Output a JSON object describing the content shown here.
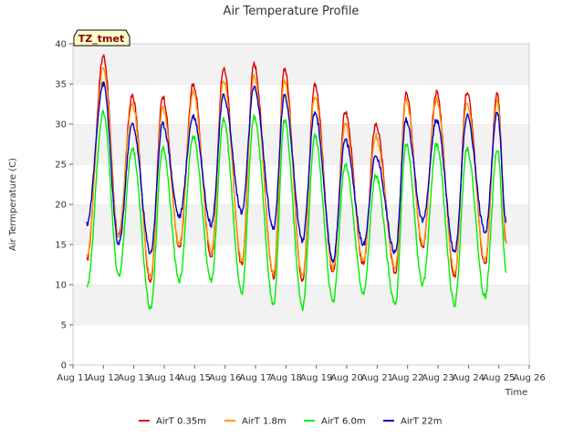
{
  "chart_data": {
    "type": "line",
    "title": "Air Temperature Profile",
    "xlabel": "Time",
    "ylabel": "Air Termperature (C)",
    "ylim": [
      0,
      40
    ],
    "xlim": [
      0,
      15
    ],
    "x_tick_labels": [
      "Aug 11",
      "Aug 12",
      "Aug 13",
      "Aug 14",
      "Aug 15",
      "Aug 16",
      "Aug 17",
      "Aug 18",
      "Aug 19",
      "Aug 20",
      "Aug 21",
      "Aug 22",
      "Aug 23",
      "Aug 24",
      "Aug 25",
      "Aug 26"
    ],
    "y_ticks": [
      0,
      5,
      10,
      15,
      20,
      25,
      30,
      35,
      40
    ],
    "grid": "horizontal bands",
    "legend_position": "bottom",
    "annotation": "TZ_tmet",
    "series": [
      {
        "name": "AirT 0.35m",
        "color": "#dd0000",
        "minima": [
          [
            0.45,
            13.0
          ],
          [
            1.5,
            16.0
          ],
          [
            2.55,
            10.5
          ],
          [
            3.5,
            14.5
          ],
          [
            4.55,
            13.5
          ],
          [
            5.55,
            12.5
          ],
          [
            6.6,
            11.0
          ],
          [
            7.55,
            10.5
          ],
          [
            8.55,
            11.5
          ],
          [
            9.55,
            12.5
          ],
          [
            10.6,
            11.5
          ],
          [
            11.5,
            14.5
          ],
          [
            12.55,
            11.0
          ],
          [
            13.55,
            12.5
          ],
          [
            14.25,
            15.0
          ]
        ],
        "maxima": [
          [
            1.0,
            38.5
          ],
          [
            1.95,
            33.5
          ],
          [
            2.95,
            33.5
          ],
          [
            3.95,
            35.0
          ],
          [
            4.95,
            37.0
          ],
          [
            5.95,
            37.5
          ],
          [
            6.95,
            37.0
          ],
          [
            7.95,
            35.0
          ],
          [
            8.95,
            31.5
          ],
          [
            9.95,
            30.0
          ],
          [
            10.95,
            34.0
          ],
          [
            11.95,
            34.0
          ],
          [
            12.95,
            34.0
          ],
          [
            13.95,
            34.0
          ]
        ]
      },
      {
        "name": "AirT 1.8m",
        "color": "#ff9900",
        "minima": [
          [
            0.45,
            13.5
          ],
          [
            1.5,
            16.0
          ],
          [
            2.55,
            11.0
          ],
          [
            3.5,
            15.0
          ],
          [
            4.55,
            14.0
          ],
          [
            5.55,
            13.0
          ],
          [
            6.6,
            11.5
          ],
          [
            7.55,
            11.0
          ],
          [
            8.55,
            12.0
          ],
          [
            9.55,
            13.0
          ],
          [
            10.6,
            12.0
          ],
          [
            11.5,
            15.0
          ],
          [
            12.55,
            11.5
          ],
          [
            13.55,
            13.0
          ],
          [
            14.25,
            15.5
          ]
        ],
        "maxima": [
          [
            1.0,
            37.0
          ],
          [
            1.95,
            32.5
          ],
          [
            2.95,
            32.0
          ],
          [
            3.95,
            34.0
          ],
          [
            4.95,
            35.5
          ],
          [
            5.95,
            36.0
          ],
          [
            6.95,
            35.5
          ],
          [
            7.95,
            33.5
          ],
          [
            8.95,
            30.0
          ],
          [
            9.95,
            28.5
          ],
          [
            10.95,
            33.0
          ],
          [
            11.95,
            33.0
          ],
          [
            12.95,
            32.5
          ],
          [
            13.95,
            33.0
          ]
        ]
      },
      {
        "name": "AirT 6.0m",
        "color": "#00ee00",
        "minima": [
          [
            0.45,
            9.5
          ],
          [
            1.5,
            11.0
          ],
          [
            2.55,
            7.0
          ],
          [
            3.5,
            10.5
          ],
          [
            4.55,
            10.5
          ],
          [
            5.55,
            9.0
          ],
          [
            6.6,
            7.5
          ],
          [
            7.55,
            7.0
          ],
          [
            8.55,
            8.0
          ],
          [
            9.55,
            9.0
          ],
          [
            10.6,
            7.5
          ],
          [
            11.5,
            10.0
          ],
          [
            12.55,
            7.5
          ],
          [
            13.55,
            8.5
          ],
          [
            14.25,
            11.5
          ]
        ],
        "maxima": [
          [
            1.0,
            31.5
          ],
          [
            1.95,
            27.0
          ],
          [
            2.95,
            27.0
          ],
          [
            3.95,
            28.5
          ],
          [
            4.95,
            30.5
          ],
          [
            5.95,
            31.0
          ],
          [
            6.95,
            30.5
          ],
          [
            7.95,
            28.5
          ],
          [
            8.95,
            25.0
          ],
          [
            9.95,
            23.5
          ],
          [
            10.95,
            27.5
          ],
          [
            11.95,
            27.5
          ],
          [
            12.95,
            27.0
          ],
          [
            13.95,
            27.0
          ]
        ]
      },
      {
        "name": "AirT 22m",
        "color": "#0000cc",
        "minima": [
          [
            0.45,
            17.5
          ],
          [
            1.5,
            15.0
          ],
          [
            2.55,
            14.0
          ],
          [
            3.5,
            18.5
          ],
          [
            4.55,
            17.5
          ],
          [
            5.55,
            19.0
          ],
          [
            6.6,
            17.0
          ],
          [
            7.55,
            15.5
          ],
          [
            8.55,
            13.0
          ],
          [
            9.55,
            15.0
          ],
          [
            10.6,
            14.0
          ],
          [
            11.5,
            18.0
          ],
          [
            12.55,
            14.0
          ],
          [
            13.55,
            16.5
          ],
          [
            14.25,
            17.5
          ]
        ],
        "maxima": [
          [
            1.0,
            35.0
          ],
          [
            1.95,
            30.0
          ],
          [
            2.95,
            30.0
          ],
          [
            3.95,
            31.0
          ],
          [
            4.95,
            33.5
          ],
          [
            5.95,
            34.5
          ],
          [
            6.95,
            33.5
          ],
          [
            7.95,
            31.5
          ],
          [
            8.95,
            28.0
          ],
          [
            9.95,
            26.0
          ],
          [
            10.95,
            30.5
          ],
          [
            11.95,
            30.5
          ],
          [
            12.95,
            31.0
          ],
          [
            13.95,
            31.5
          ]
        ]
      }
    ]
  }
}
